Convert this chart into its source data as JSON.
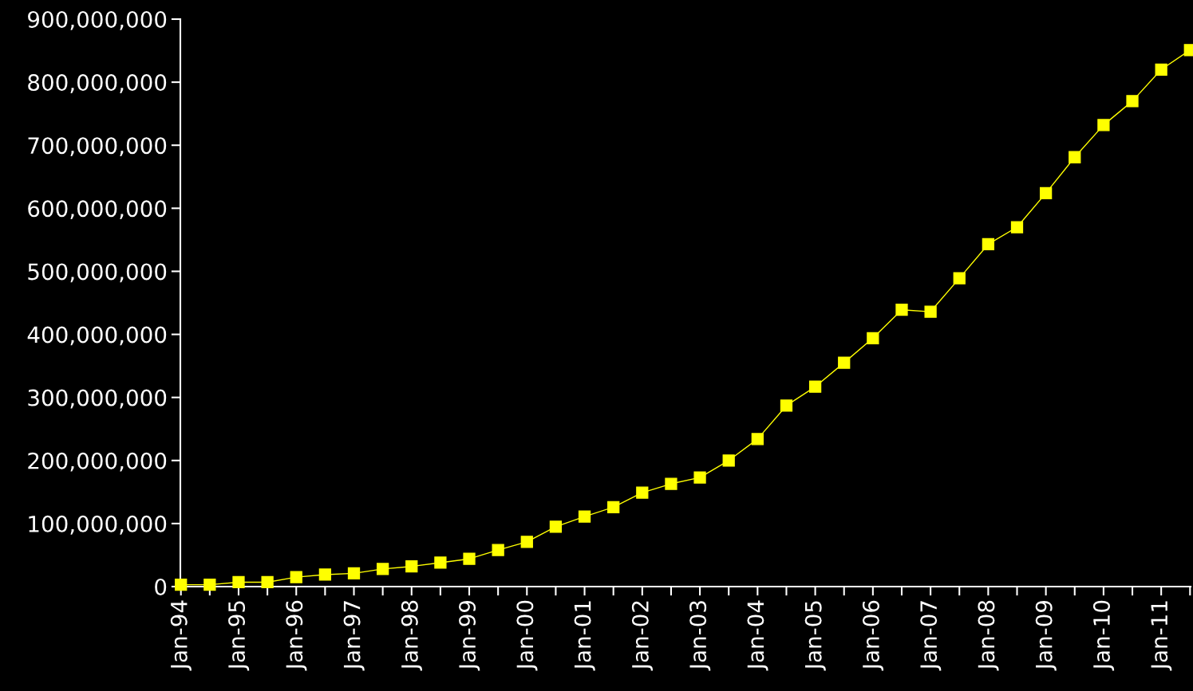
{
  "chart_data": {
    "type": "line",
    "categories": [
      "Jan-94",
      null,
      "Jan-95",
      null,
      "Jan-96",
      null,
      "Jan-97",
      null,
      "Jan-98",
      null,
      "Jan-99",
      null,
      "Jan-00",
      null,
      "Jan-01",
      null,
      "Jan-02",
      null,
      "Jan-03",
      null,
      "Jan-04",
      null,
      "Jan-05",
      null,
      "Jan-06",
      null,
      "Jan-07",
      null,
      "Jan-08",
      null,
      "Jan-09",
      null,
      "Jan-10",
      null,
      "Jan-11",
      null
    ],
    "series": [
      {
        "color": "#ffff00",
        "values": [
          3000000,
          3000000,
          7000000,
          7000000,
          15000000,
          19000000,
          21000000,
          28000000,
          32000000,
          38000000,
          44000000,
          58000000,
          71000000,
          95000000,
          111000000,
          126000000,
          149000000,
          163000000,
          173000000,
          200000000,
          234000000,
          287000000,
          317000000,
          355000000,
          394000000,
          439000000,
          436000000,
          489000000,
          543000000,
          570000000,
          624000000,
          681000000,
          732000000,
          770000000,
          820000000,
          851000000
        ]
      }
    ],
    "ylim": [
      0,
      900000000
    ],
    "yticks": [
      0,
      {
        "value": 100000000,
        "label": "100,000,000"
      },
      {
        "value": 200000000,
        "label": "200,000,000"
      },
      {
        "value": 300000000,
        "label": "300,000,000"
      },
      {
        "value": 400000000,
        "label": "400,000,000"
      },
      {
        "value": 500000000,
        "label": "500,000,000"
      },
      {
        "value": 600000000,
        "label": "600,000,000"
      },
      {
        "value": 700000000,
        "label": "700,000,000"
      },
      {
        "value": 800000000,
        "label": "800,000,000"
      },
      {
        "value": 900000000,
        "label": "900,000,000"
      }
    ],
    "marker": "square",
    "line_style": "solid",
    "grid": false,
    "legend": false
  }
}
